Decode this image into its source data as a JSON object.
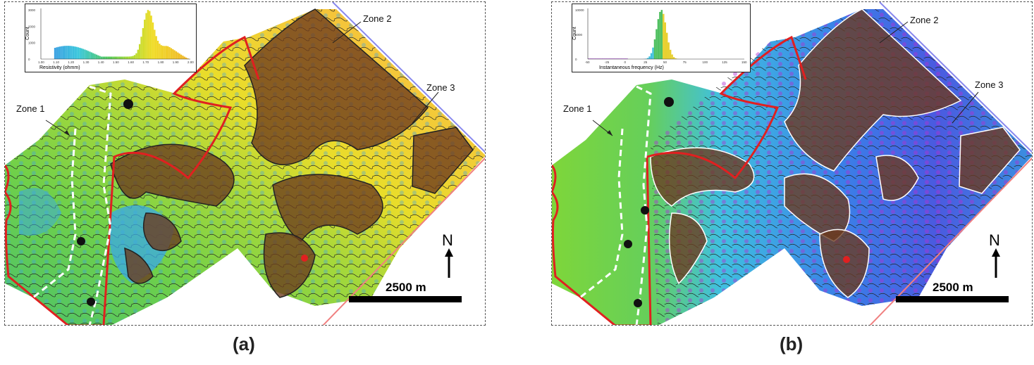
{
  "panels": [
    {
      "id": "a",
      "caption": "(a)",
      "histogram": {
        "xlabel": "Resistivity (ohmm)",
        "ylabel": "Count",
        "xticks": [
          "1.00",
          "1.10",
          "1.20",
          "1.30",
          "1.40",
          "1.50",
          "1.60",
          "1.70",
          "1.80",
          "1.90",
          "2.00"
        ],
        "yticks": [
          "0",
          "1000",
          "2000",
          "3000"
        ]
      },
      "zones": [
        "Zone 1",
        "Zone 2",
        "Zone 3"
      ],
      "north": "N",
      "scale": "2500 m"
    },
    {
      "id": "b",
      "caption": "(b)",
      "histogram": {
        "xlabel": "Instantaneous frequency (Hz)",
        "ylabel": "Count",
        "xticks": [
          "-50",
          "-25",
          "0",
          "25",
          "50",
          "75",
          "100",
          "125",
          "150"
        ],
        "yticks": [
          "0",
          "5000",
          "10000"
        ]
      },
      "zones": [
        "Zone 1",
        "Zone 2",
        "Zone 3"
      ],
      "north": "N",
      "scale": "2500 m"
    }
  ],
  "colors": {
    "boundary_red": "#e02020",
    "dashed_white": "#ffffff",
    "zone_overlay": "#6b3a1e",
    "corridor_blue": "#8888ee",
    "corridor_pink": "#f08080"
  }
}
